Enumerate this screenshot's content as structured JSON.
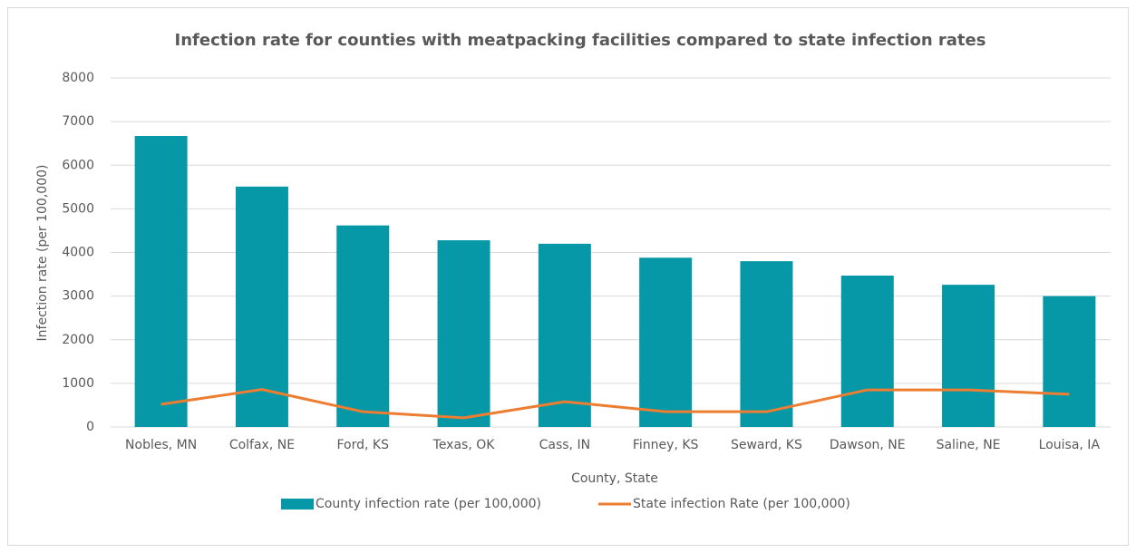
{
  "chart_data": {
    "type": "bar",
    "title": "Infection rate for counties with meatpacking facilities compared to state infection rates",
    "x_label": "County, State",
    "y_label": "Infection rate (per 100,000)",
    "categories": [
      "Nobles, MN",
      "Colfax, NE",
      "Ford, KS",
      "Texas, OK",
      "Cass, IN",
      "Finney, KS",
      "Seward, KS",
      "Dawson, NE",
      "Saline, NE",
      "Louisa, IA"
    ],
    "series": [
      {
        "name": "County infection rate (per 100,000)",
        "type": "bar",
        "color": "#0798a8",
        "values": [
          6670,
          5510,
          4620,
          4280,
          4200,
          3880,
          3800,
          3470,
          3260,
          3000
        ]
      },
      {
        "name": "State infection Rate (per 100,000)",
        "type": "line",
        "color": "#ed7d31",
        "values": [
          520,
          860,
          350,
          210,
          580,
          350,
          350,
          850,
          850,
          750
        ]
      }
    ],
    "ylim": [
      0,
      8000
    ],
    "yticks": [
      0,
      1000,
      2000,
      3000,
      4000,
      5000,
      6000,
      7000,
      8000
    ],
    "grid": true,
    "legend": "bottom"
  }
}
